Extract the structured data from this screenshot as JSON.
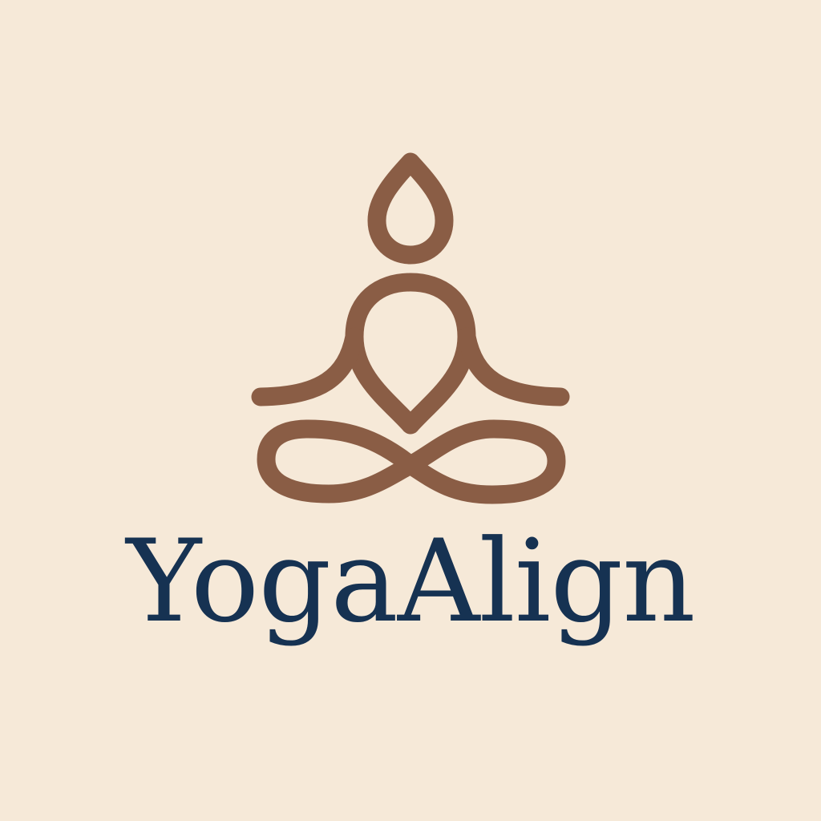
{
  "brand": {
    "name": "YogaAlign",
    "icon": "meditation-figure-icon"
  },
  "colors": {
    "background": "#f6e9d8",
    "icon": "#8a5d45",
    "text": "#163252"
  }
}
